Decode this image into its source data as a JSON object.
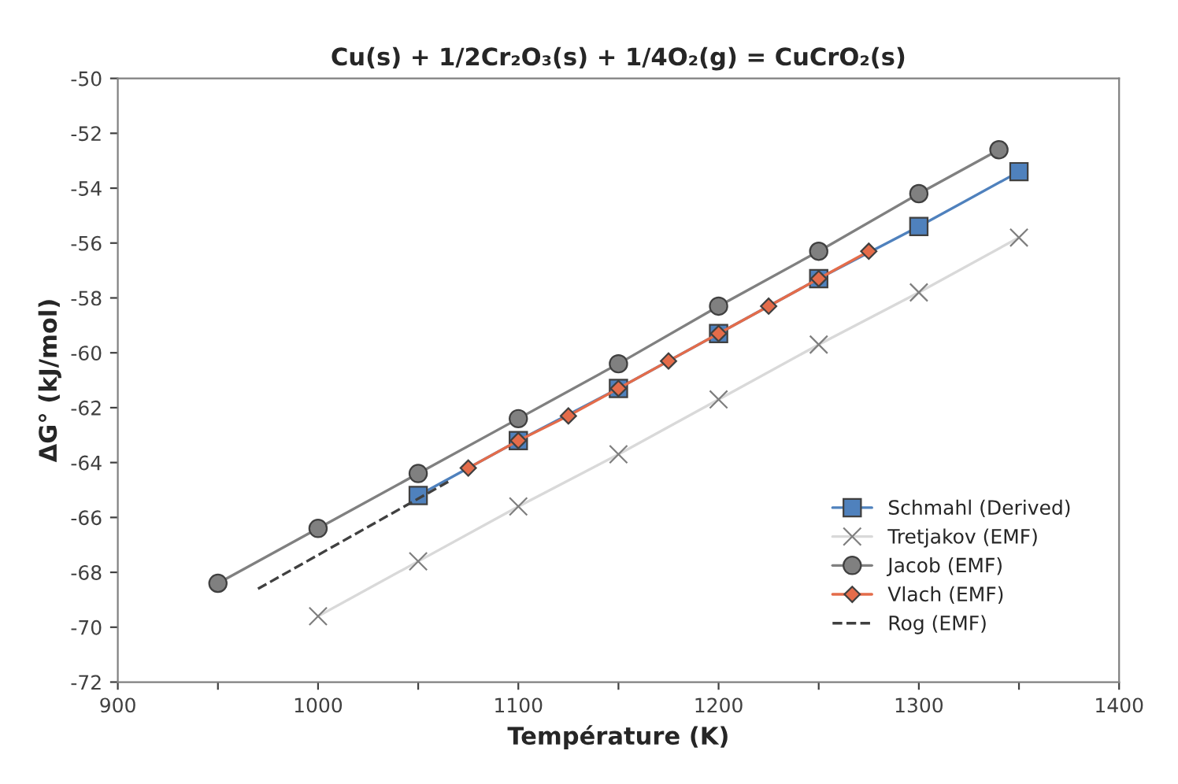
{
  "chart_data": {
    "type": "line",
    "title": "Cu(s) + 1/2Cr₂O₃(s) + 1/4O₂(g) = CuCrO₂(s)",
    "xlabel": "Température (K)",
    "ylabel": "ΔG° (kJ/mol)",
    "xlim": [
      900,
      1400
    ],
    "ylim": [
      -72,
      -50
    ],
    "xticks": [
      900,
      {
        "value": 950,
        "label": null
      },
      1000,
      {
        "value": 1050,
        "label": null
      },
      1100,
      {
        "value": 1150,
        "label": null
      },
      1200,
      {
        "value": 1250,
        "label": null
      },
      1300,
      {
        "value": 1350,
        "label": null
      },
      1400
    ],
    "yticks": [
      -72,
      -70,
      -68,
      -66,
      -64,
      -62,
      -60,
      -58,
      -56,
      -54,
      -52,
      -50
    ],
    "grid": false,
    "legend": "bottom right",
    "series": [
      {
        "name": "Schmahl (Derived)",
        "color": "#4f81bd",
        "marker": "square",
        "line_style": "solid",
        "x": [
          1050,
          1100,
          1150,
          1200,
          1250,
          1300,
          1350
        ],
        "values": [
          -65.2,
          -63.2,
          -61.3,
          -59.3,
          -57.3,
          -55.4,
          -53.4
        ]
      },
      {
        "name": "Tretjakov (EMF)",
        "color": "#7f7f7f",
        "marker": "cross",
        "line_style": "solid",
        "x": [
          1000,
          1050,
          1100,
          1150,
          1200,
          1250,
          1300,
          1350
        ],
        "values": [
          -69.6,
          -67.6,
          -65.6,
          -63.7,
          -61.7,
          -59.7,
          -57.8,
          -55.8
        ]
      },
      {
        "name": "Jacob (EMF)",
        "color": "#808080",
        "marker": "circle",
        "line_style": "solid",
        "x": [
          950,
          1000,
          1050,
          1100,
          1150,
          1200,
          1250,
          1300,
          1340
        ],
        "values": [
          -68.4,
          -66.4,
          -64.4,
          -62.4,
          -60.4,
          -58.3,
          -56.3,
          -54.2,
          -52.6
        ]
      },
      {
        "name": "Vlach (EMF)",
        "color": "#e46c4a",
        "marker": "diamond",
        "line_style": "solid",
        "x": [
          1075,
          1100,
          1125,
          1150,
          1175,
          1200,
          1225,
          1250,
          1275
        ],
        "values": [
          -64.2,
          -63.2,
          -62.3,
          -61.3,
          -60.3,
          -59.3,
          -58.3,
          -57.3,
          -56.3
        ]
      },
      {
        "name": "Rog (EMF)",
        "color": "#404040",
        "marker": "none",
        "line_style": "dashed",
        "x": [
          970,
          1065
        ],
        "values": [
          -68.6,
          -64.7
        ]
      }
    ]
  }
}
